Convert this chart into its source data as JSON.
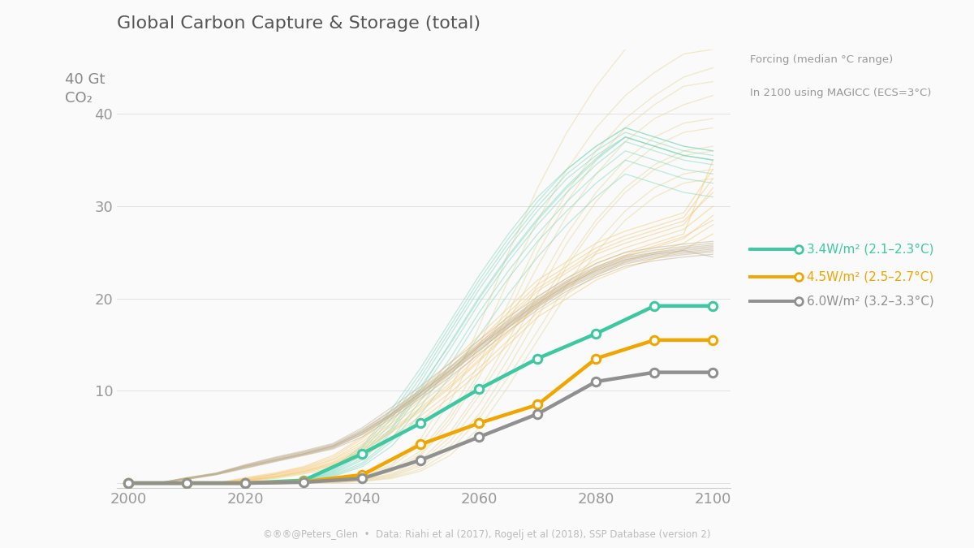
{
  "title": "Global Carbon Capture & Storage (total)",
  "background_color": "#FAFAFA",
  "footer": "©®®@Peters_Glen  •  Data: Riahi et al (2017), Rogelj et al (2018), SSP Database (version 2)",
  "legend_title1": "Forcing (median °C range)",
  "legend_title2": "In 2100 using MAGICC (ECS=3°C)",
  "years": [
    2000,
    2005,
    2010,
    2015,
    2020,
    2025,
    2030,
    2035,
    2040,
    2045,
    2050,
    2055,
    2060,
    2065,
    2070,
    2075,
    2080,
    2085,
    2090,
    2095,
    2100
  ],
  "median_years": [
    2000,
    2010,
    2020,
    2030,
    2040,
    2050,
    2060,
    2070,
    2080,
    2090,
    2100
  ],
  "teal_median": [
    0,
    0,
    0,
    0.3,
    3.2,
    6.5,
    10.2,
    13.5,
    16.2,
    19.2,
    19.2
  ],
  "orange_median": [
    0,
    0,
    0,
    0.15,
    0.9,
    4.2,
    6.5,
    8.5,
    13.5,
    15.5,
    15.5
  ],
  "gray_median": [
    0,
    0,
    0,
    0.1,
    0.5,
    2.5,
    5.0,
    7.5,
    11.0,
    12.0,
    12.0
  ],
  "teal_color": "#3EC8A2",
  "orange_color": "#F0A500",
  "gray_color": "#909090",
  "teal_label": "3.4W/m² (2.1–2.3°C)",
  "orange_label": "4.5W/m² (2.5–2.7°C)",
  "gray_label": "6.0W/m² (3.2–3.3°C)",
  "yticks": [
    0,
    10,
    20,
    30,
    40
  ],
  "ylim": [
    -0.5,
    47
  ],
  "xlim": [
    1998,
    2103
  ],
  "bg_teal_color": "#7ED8BE",
  "bg_orange_color": "#F5C870",
  "bg_gray_color": "#C0B090",
  "bg_cream_color": "#E8D8A0",
  "bg_lines_teal": [
    [
      0,
      0,
      0,
      0,
      0,
      0,
      0.3,
      1.2,
      3.0,
      6.0,
      10.5,
      15.0,
      20.0,
      24.5,
      28.5,
      32.0,
      35.0,
      37.5,
      36.5,
      35.5,
      35.0
    ],
    [
      0,
      0,
      0,
      0,
      0,
      0,
      0.2,
      0.9,
      2.2,
      4.8,
      9.0,
      13.5,
      18.5,
      23.0,
      27.0,
      30.5,
      33.5,
      36.0,
      35.0,
      34.0,
      33.5
    ],
    [
      0,
      0,
      0,
      0,
      0,
      0,
      0.4,
      1.4,
      3.5,
      7.0,
      11.5,
      16.5,
      21.5,
      26.0,
      30.0,
      33.5,
      36.0,
      38.0,
      37.0,
      36.0,
      35.5
    ],
    [
      0,
      0,
      0,
      0,
      0,
      0,
      0.25,
      1.0,
      2.5,
      5.5,
      9.8,
      14.5,
      19.5,
      24.0,
      28.0,
      31.5,
      34.5,
      37.0,
      36.0,
      35.0,
      34.5
    ],
    [
      0,
      0,
      0,
      0,
      0,
      0,
      0.5,
      1.7,
      4.0,
      8.0,
      12.5,
      17.5,
      22.5,
      27.0,
      31.0,
      34.0,
      36.5,
      38.5,
      37.5,
      36.5,
      36.0
    ],
    [
      0,
      0,
      0,
      0,
      0,
      0,
      0.35,
      1.3,
      3.2,
      6.5,
      11.0,
      16.0,
      21.0,
      25.5,
      29.5,
      33.0,
      35.5,
      37.5,
      36.5,
      35.5,
      35.0
    ],
    [
      0,
      0,
      0,
      0,
      0,
      0,
      0.15,
      0.7,
      1.8,
      4.0,
      7.5,
      11.5,
      16.0,
      20.5,
      24.5,
      28.0,
      31.0,
      33.5,
      32.5,
      31.5,
      31.0
    ],
    [
      0,
      0,
      0,
      0,
      0,
      0,
      0.45,
      1.5,
      3.8,
      7.5,
      12.0,
      17.0,
      22.0,
      26.5,
      30.5,
      34.0,
      36.5,
      38.5,
      37.5,
      36.5,
      36.0
    ],
    [
      0,
      0,
      0,
      0,
      0,
      0,
      0.28,
      1.1,
      2.7,
      5.8,
      10.2,
      15.2,
      20.2,
      24.7,
      28.7,
      32.2,
      35.2,
      37.5,
      36.5,
      35.5,
      35.0
    ],
    [
      0,
      0,
      0,
      0,
      0,
      0,
      0.18,
      0.8,
      2.0,
      4.5,
      8.3,
      12.8,
      17.8,
      22.2,
      26.2,
      29.5,
      32.5,
      35.0,
      34.0,
      33.0,
      32.5
    ]
  ],
  "bg_lines_orange": [
    [
      0,
      0,
      0,
      0,
      0.3,
      0.7,
      1.3,
      2.2,
      3.8,
      5.8,
      8.2,
      10.8,
      13.8,
      16.8,
      19.8,
      21.8,
      23.8,
      25.0,
      26.0,
      27.0,
      35.0
    ],
    [
      0,
      0,
      0,
      0,
      0.2,
      0.6,
      1.1,
      1.9,
      3.2,
      5.0,
      7.3,
      9.8,
      12.5,
      15.5,
      18.5,
      20.5,
      22.5,
      24.0,
      25.0,
      26.0,
      28.0
    ],
    [
      0,
      0,
      0,
      0,
      0.4,
      0.9,
      1.5,
      2.5,
      4.2,
      6.5,
      9.0,
      11.8,
      14.8,
      17.8,
      20.8,
      22.8,
      24.8,
      26.0,
      27.0,
      28.0,
      32.0
    ],
    [
      0,
      0,
      0,
      0,
      0.25,
      0.65,
      1.2,
      2.0,
      3.5,
      5.5,
      7.8,
      10.3,
      13.2,
      16.2,
      19.2,
      21.2,
      23.2,
      24.5,
      25.5,
      26.5,
      29.0
    ],
    [
      0,
      0,
      0,
      0,
      0.5,
      1.0,
      1.7,
      2.8,
      4.8,
      7.2,
      9.8,
      12.5,
      15.5,
      18.5,
      21.5,
      23.5,
      25.5,
      26.8,
      27.8,
      28.8,
      33.0
    ],
    [
      0,
      0,
      0,
      0,
      0.35,
      0.8,
      1.4,
      2.3,
      4.0,
      6.2,
      8.6,
      11.2,
      14.2,
      17.2,
      20.2,
      22.2,
      24.2,
      25.5,
      26.5,
      27.5,
      30.0
    ],
    [
      0,
      0,
      0,
      0,
      0.15,
      0.5,
      1.0,
      1.7,
      2.9,
      4.7,
      6.8,
      9.3,
      12.0,
      15.0,
      18.0,
      20.0,
      22.0,
      23.3,
      24.3,
      25.3,
      27.0
    ],
    [
      0,
      0,
      0,
      0,
      0.6,
      1.1,
      1.8,
      3.0,
      5.0,
      7.5,
      10.2,
      13.0,
      16.0,
      19.0,
      22.0,
      24.0,
      26.0,
      27.3,
      28.3,
      29.3,
      34.0
    ],
    [
      0,
      0,
      0,
      0,
      0.28,
      0.7,
      1.25,
      2.1,
      3.6,
      5.6,
      8.0,
      10.5,
      13.4,
      16.4,
      19.4,
      21.4,
      23.4,
      24.7,
      25.7,
      26.7,
      28.5
    ],
    [
      0,
      0,
      0,
      0,
      0.45,
      0.95,
      1.6,
      2.6,
      4.5,
      6.8,
      9.4,
      12.1,
      15.1,
      18.1,
      21.1,
      23.1,
      25.1,
      26.4,
      27.4,
      28.4,
      31.5
    ]
  ],
  "bg_lines_gray": [
    [
      0,
      0,
      0.5,
      1.0,
      1.8,
      2.5,
      3.2,
      4.0,
      5.5,
      7.5,
      9.8,
      12.2,
      14.8,
      17.2,
      19.5,
      21.5,
      23.0,
      24.2,
      24.8,
      25.2,
      25.5
    ],
    [
      0,
      0,
      0.4,
      0.9,
      1.6,
      2.3,
      3.0,
      3.7,
      5.0,
      7.0,
      9.2,
      11.5,
      14.0,
      16.5,
      18.8,
      20.8,
      22.3,
      23.5,
      24.1,
      24.5,
      24.8
    ],
    [
      0,
      0,
      0.6,
      1.1,
      2.0,
      2.8,
      3.5,
      4.3,
      6.0,
      8.2,
      10.5,
      13.0,
      15.5,
      18.0,
      20.2,
      22.2,
      23.8,
      25.0,
      25.5,
      25.9,
      26.2
    ],
    [
      0,
      0,
      0.45,
      0.95,
      1.7,
      2.4,
      3.1,
      3.85,
      5.3,
      7.3,
      9.5,
      11.9,
      14.4,
      16.9,
      19.2,
      21.2,
      22.7,
      23.9,
      24.5,
      24.9,
      25.2
    ],
    [
      0,
      0,
      0.55,
      1.05,
      1.9,
      2.65,
      3.35,
      4.1,
      5.7,
      7.8,
      10.0,
      12.5,
      15.0,
      17.5,
      19.8,
      21.8,
      23.3,
      24.5,
      25.0,
      25.5,
      25.8
    ],
    [
      0,
      0,
      0.5,
      1.0,
      1.8,
      2.5,
      3.2,
      4.0,
      5.5,
      7.5,
      9.8,
      12.2,
      14.8,
      17.2,
      19.5,
      21.5,
      23.0,
      24.2,
      24.8,
      25.2,
      24.5
    ],
    [
      0,
      0,
      0.48,
      0.98,
      1.75,
      2.48,
      3.15,
      3.93,
      5.4,
      7.4,
      9.65,
      12.05,
      14.6,
      17.05,
      19.35,
      21.35,
      22.85,
      24.05,
      24.65,
      25.05,
      25.35
    ],
    [
      0,
      0,
      0.52,
      1.02,
      1.85,
      2.58,
      3.25,
      4.05,
      5.6,
      7.6,
      9.85,
      12.3,
      14.9,
      17.35,
      19.65,
      21.65,
      23.15,
      24.35,
      24.95,
      25.35,
      25.65
    ],
    [
      0,
      0,
      0.42,
      0.92,
      1.65,
      2.38,
      3.05,
      3.8,
      5.25,
      7.25,
      9.45,
      11.85,
      14.4,
      16.85,
      19.05,
      21.05,
      22.55,
      23.75,
      24.35,
      24.75,
      25.05
    ],
    [
      0,
      0,
      0.58,
      1.08,
      1.95,
      2.72,
      3.4,
      4.2,
      5.8,
      7.9,
      10.15,
      12.6,
      15.2,
      17.65,
      19.95,
      21.95,
      23.45,
      24.65,
      25.25,
      25.65,
      26.0
    ]
  ],
  "bg_lines_cream": [
    [
      0,
      0,
      0,
      0,
      0,
      0,
      0,
      0.05,
      0.2,
      0.6,
      1.5,
      3.5,
      7.0,
      11.5,
      16.5,
      21.5,
      26.0,
      29.5,
      32.0,
      33.5,
      34.0
    ],
    [
      0,
      0,
      0,
      0,
      0,
      0,
      0,
      0.08,
      0.3,
      0.8,
      2.0,
      4.5,
      8.5,
      13.5,
      19.0,
      24.0,
      28.5,
      32.0,
      34.5,
      36.0,
      36.5
    ],
    [
      0,
      0,
      0,
      0,
      0,
      0,
      0,
      0.1,
      0.4,
      1.0,
      2.5,
      5.5,
      10.0,
      15.5,
      21.5,
      27.0,
      31.5,
      35.0,
      37.5,
      39.0,
      39.5
    ],
    [
      0,
      0,
      0,
      0,
      0,
      0,
      0,
      0.06,
      0.25,
      0.7,
      1.8,
      4.0,
      7.5,
      12.5,
      18.0,
      23.5,
      28.0,
      31.5,
      34.0,
      35.5,
      36.0
    ],
    [
      0,
      0,
      0,
      0,
      0,
      0,
      0,
      0.12,
      0.5,
      1.2,
      3.0,
      6.5,
      11.5,
      17.5,
      23.5,
      29.0,
      33.5,
      37.0,
      39.5,
      41.0,
      42.0
    ],
    [
      0,
      0,
      0,
      0,
      0,
      0,
      0,
      0.15,
      0.6,
      1.5,
      3.5,
      7.5,
      13.0,
      19.5,
      26.0,
      31.5,
      36.0,
      39.5,
      42.0,
      44.0,
      45.0
    ],
    [
      0,
      0,
      0,
      0,
      0,
      0,
      0,
      0.04,
      0.18,
      0.5,
      1.3,
      3.0,
      6.0,
      10.5,
      15.5,
      20.5,
      25.0,
      28.5,
      31.0,
      32.5,
      33.0
    ],
    [
      0,
      0,
      0,
      0,
      0,
      0,
      0,
      0.18,
      0.7,
      1.8,
      4.2,
      8.8,
      15.0,
      22.0,
      28.5,
      34.0,
      38.5,
      42.0,
      44.5,
      46.5,
      47.0
    ],
    [
      0,
      0,
      0,
      0,
      0,
      0,
      0,
      0.09,
      0.35,
      0.9,
      2.2,
      5.0,
      9.5,
      14.5,
      20.5,
      26.0,
      30.5,
      34.0,
      36.5,
      38.0,
      38.5
    ],
    [
      0,
      0,
      0,
      0,
      0,
      0,
      0,
      0.13,
      0.55,
      1.3,
      3.2,
      7.0,
      12.0,
      18.5,
      25.0,
      30.5,
      35.0,
      38.5,
      41.0,
      43.0,
      43.5
    ],
    [
      0,
      0,
      0,
      0,
      0,
      0,
      0,
      0.2,
      0.8,
      2.0,
      4.8,
      10.0,
      17.0,
      25.0,
      32.0,
      38.0,
      43.0,
      47.0,
      49.5,
      51.0,
      52.0
    ]
  ]
}
